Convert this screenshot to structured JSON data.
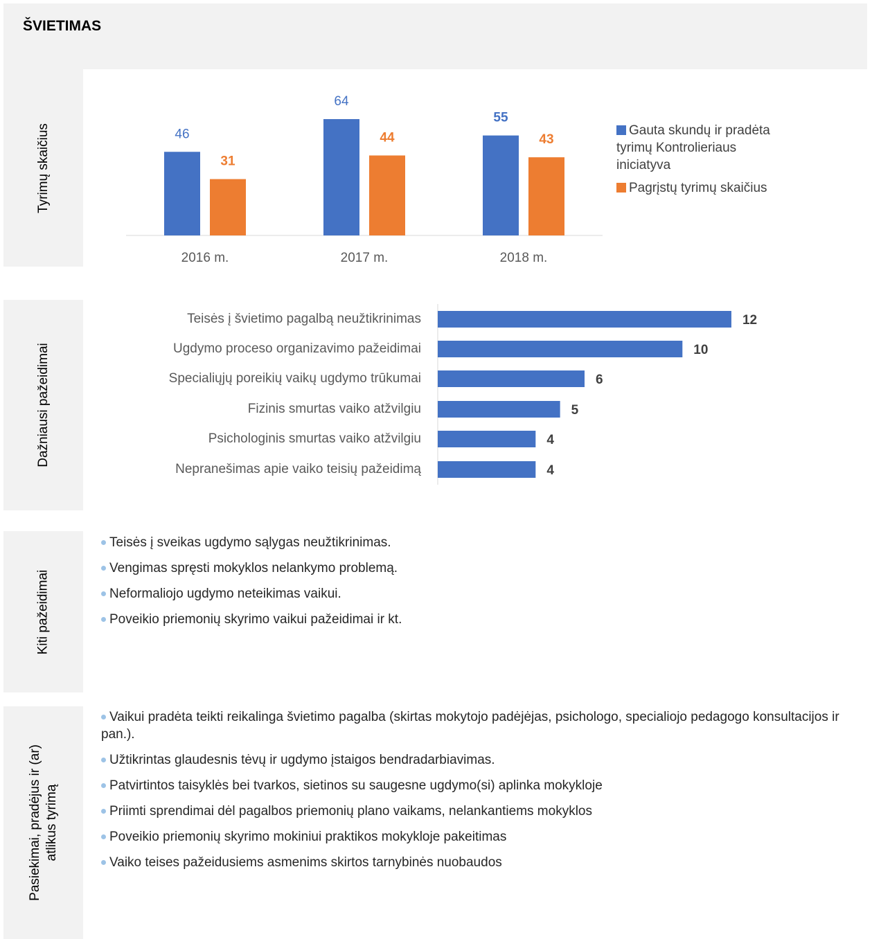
{
  "title": "ŠVIETIMAS",
  "sections": [
    {
      "label_lines": [
        "Tyrimų skaičius"
      ]
    },
    {
      "label_lines": [
        "Dažniausi pažeidimai"
      ]
    },
    {
      "label_lines": [
        "Kiti pažeidimai"
      ],
      "items": [
        "Teisės į sveikas ugdymo sąlygas neužtikrinimas.",
        "Vengimas spręsti mokyklos nelankymo problemą.",
        "Neformaliojo ugdymo neteikimas vaikui.",
        "Poveikio priemonių skyrimo vaikui pažeidimai ir kt."
      ]
    },
    {
      "label_lines": [
        "Pasiekimai, pradėjus ir (ar)",
        "atlikus tyrimą"
      ],
      "items": [
        "Vaikui pradėta teikti reikalinga švietimo pagalba (skirtas mokytojo padėjėjas, psichologo, specialiojo pedagogo konsultacijos ir pan.).",
        "Užtikrintas glaudesnis tėvų ir ugdymo įstaigos bendradarbiavimas.",
        "Patvirtintos taisyklės bei tvarkos, sietinos su saugesne ugdymo(si) aplinka mokykloje",
        "Priimti sprendimai dėl pagalbos priemonių plano vaikams, nelankantiems mokyklos",
        "Poveikio priemonių skyrimo mokiniui praktikos mokykloje pakeitimas",
        "Vaiko teises pažeidusiems asmenims skirtos tarnybinės nuobaudos"
      ]
    }
  ],
  "chart_data": [
    {
      "type": "bar",
      "categories": [
        "2016 m.",
        "2017 m.",
        "2018 m."
      ],
      "legend": "right",
      "series": [
        {
          "name": "Gauta skundų ir pradėta tyrimų Kontrolieriaus iniciatyva",
          "color": "#4472c4",
          "values": [
            46,
            64,
            55
          ],
          "bold_labels": [
            false,
            false,
            true
          ]
        },
        {
          "name": "Pagrįstų tyrimų skaičius",
          "color": "#ed7d31",
          "values": [
            31,
            44,
            43
          ],
          "bold_labels": [
            true,
            true,
            true
          ]
        }
      ]
    },
    {
      "type": "hbar",
      "categories": [
        "Teisės į švietimo pagalbą neužtikrinimas",
        "Ugdymo proceso organizavimo pažeidimai",
        "Specialiųjų poreikių vaikų ugdymo trūkumai",
        "Fizinis smurtas vaiko atžvilgiu",
        "Psichologinis smurtas vaiko atžvilgiu",
        "Nepranešimas apie vaiko teisių pažeidimą"
      ],
      "values": [
        12,
        10,
        6,
        5,
        4,
        4
      ],
      "color": "#4472c4"
    }
  ]
}
